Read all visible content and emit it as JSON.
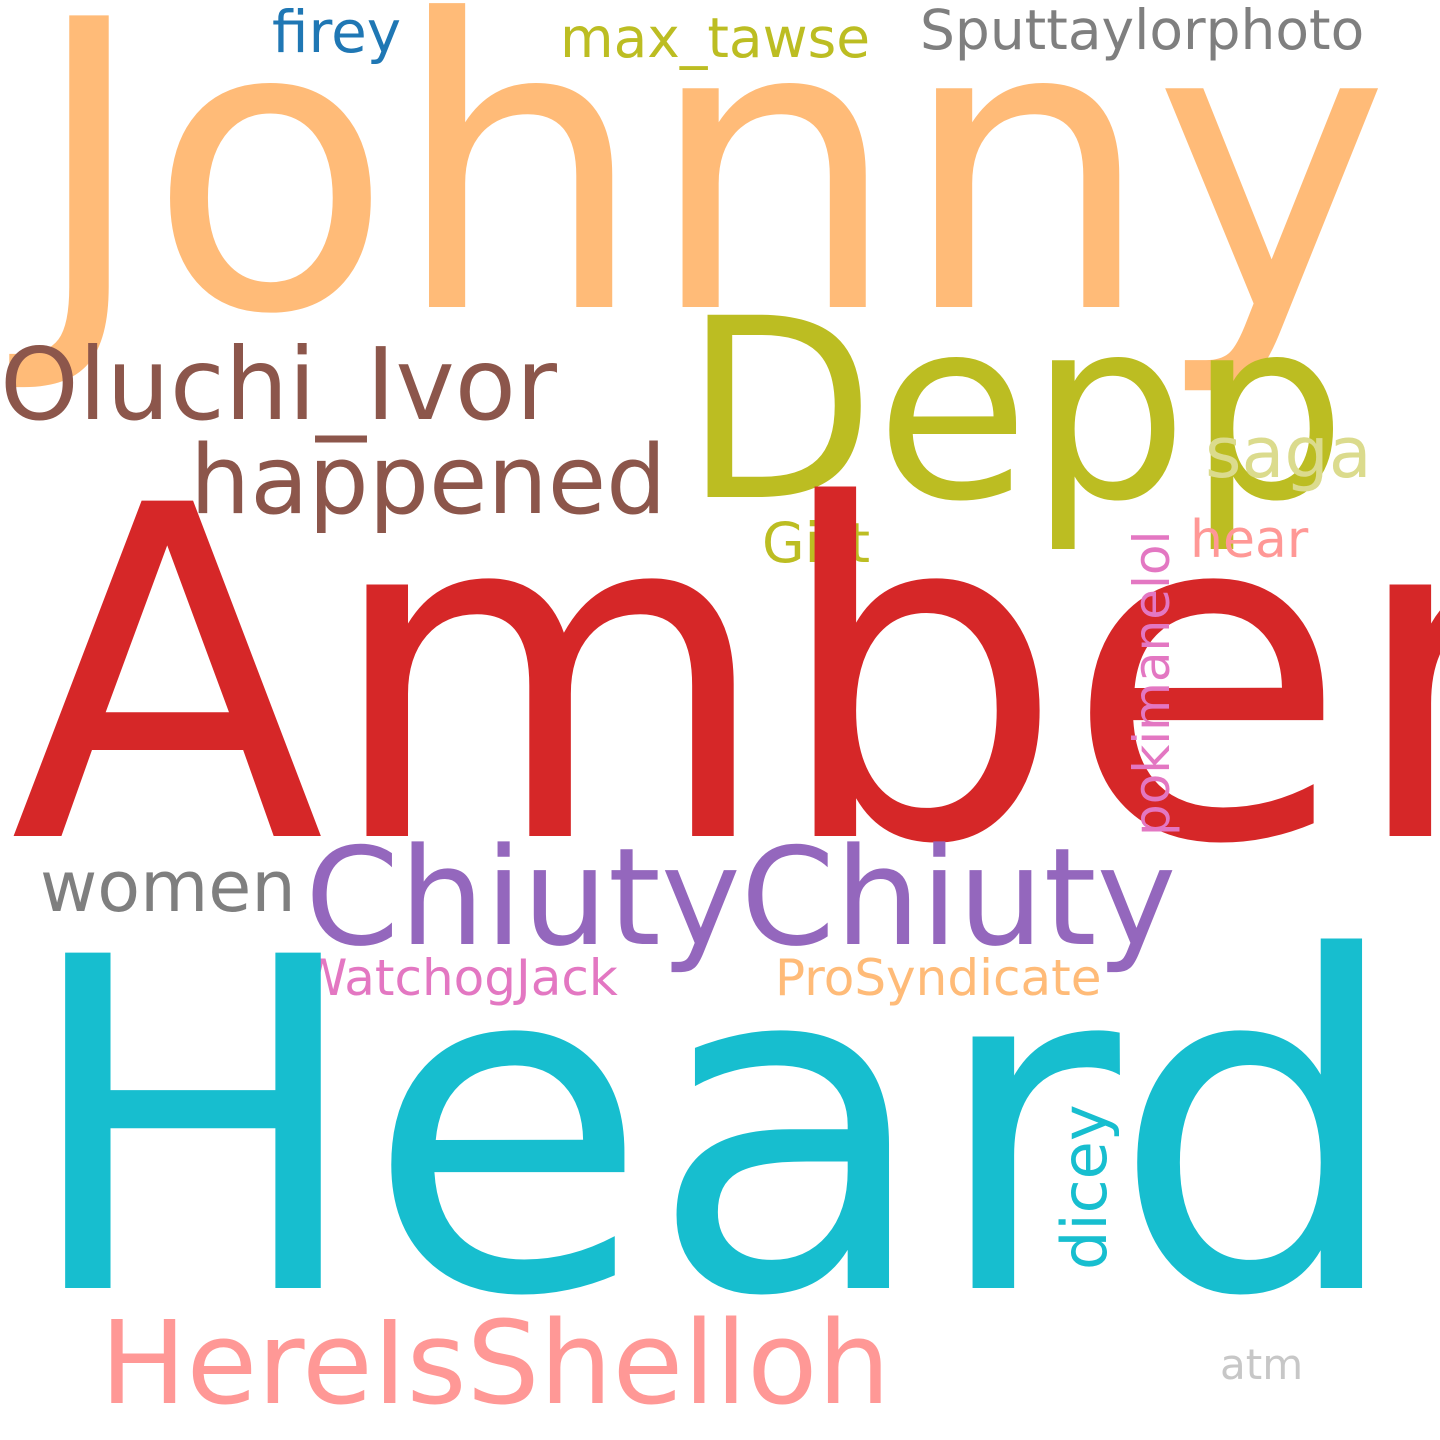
{
  "words": {
    "johnny": {
      "text": "Johnny",
      "color": "#FFBB78"
    },
    "amber": {
      "text": "Amber",
      "color": "#D62728"
    },
    "heard": {
      "text": "Heard",
      "color": "#17BECF"
    },
    "depp": {
      "text": "Depp",
      "color": "#BCBD22"
    },
    "oluchi": {
      "text": "Oluchi_Ivor",
      "color": "#8C564B"
    },
    "happened": {
      "text": "happened",
      "color": "#8C564B"
    },
    "chiuty": {
      "text": "ChiutyChiuty",
      "color": "#9467BD"
    },
    "hereis": {
      "text": "HereIsShelloh",
      "color": "#FF9896"
    },
    "women": {
      "text": "women",
      "color": "#7F7F7F"
    },
    "watchog": {
      "text": "WatchogJack",
      "color": "#E377C2"
    },
    "prosynd": {
      "text": "ProSyndicate",
      "color": "#FFBB78"
    },
    "saga": {
      "text": "saga",
      "color": "#DBDB8D"
    },
    "gist": {
      "text": "Gist",
      "color": "#BCBD22"
    },
    "hear": {
      "text": "hear",
      "color": "#FF9896"
    },
    "firey": {
      "text": "firey",
      "color": "#1F77B4"
    },
    "maxtawse": {
      "text": "max_tawse",
      "color": "#BCBD22"
    },
    "sputt": {
      "text": "Sputtaylorphoto",
      "color": "#7F7F7F"
    },
    "atm": {
      "text": "atm",
      "color": "#C7C7C7"
    },
    "pokimane": {
      "text": "pokimanelol",
      "color": "#E377C2"
    },
    "dicey": {
      "text": "dicey",
      "color": "#17BECF"
    }
  }
}
